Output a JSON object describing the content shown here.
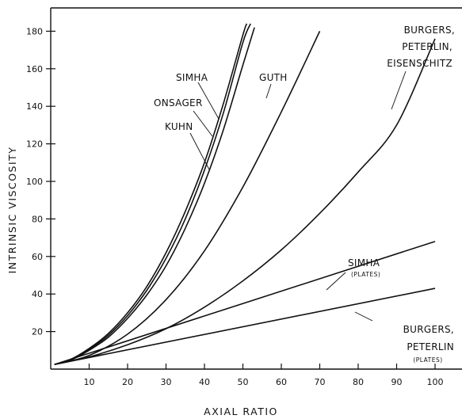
{
  "chart_data": {
    "type": "line",
    "title": "",
    "xlabel": "AXIAL RATIO",
    "ylabel": "INTRINSIC VISCOSITY",
    "xlim": [
      0,
      110
    ],
    "ylim": [
      0,
      190
    ],
    "x_ticks": [
      10,
      20,
      30,
      40,
      50,
      60,
      70,
      80,
      90,
      100
    ],
    "y_ticks": [
      20,
      40,
      60,
      80,
      100,
      120,
      140,
      160,
      180
    ],
    "grid": false,
    "series": [
      {
        "name": "SIMHA",
        "x": [
          1,
          5,
          10,
          15,
          20,
          25,
          30,
          35,
          40,
          45,
          50,
          51
        ],
        "y": [
          2.5,
          5,
          11,
          19,
          30,
          44,
          62,
          84,
          110,
          142,
          178,
          184
        ]
      },
      {
        "name": "ONSAGER",
        "x": [
          1,
          5,
          10,
          15,
          20,
          25,
          30,
          35,
          40,
          45,
          50,
          52
        ],
        "y": [
          2.5,
          4.8,
          10.5,
          18,
          28.5,
          42,
          59,
          80,
          106,
          137,
          174,
          184
        ]
      },
      {
        "name": "KUHN",
        "x": [
          1,
          5,
          10,
          15,
          20,
          25,
          30,
          35,
          40,
          45,
          50,
          53
        ],
        "y": [
          2.5,
          4.6,
          10,
          17,
          27,
          39.5,
          55,
          75,
          99,
          128,
          162,
          182
        ]
      },
      {
        "name": "GUTH",
        "x": [
          1,
          10,
          20,
          30,
          40,
          50,
          60,
          70
        ],
        "y": [
          2.5,
          7.3,
          18.6,
          37,
          63,
          97,
          137,
          180
        ]
      },
      {
        "name": "BURGERS, PETERLIN, EISENSCHITZ",
        "x": [
          1,
          10,
          20,
          30,
          40,
          50,
          60,
          70,
          80,
          90,
          100
        ],
        "y": [
          2.5,
          6.5,
          13,
          21.5,
          33,
          47,
          63.5,
          83,
          105,
          130,
          176
        ]
      },
      {
        "name": "SIMHA (PLATES)",
        "x": [
          1,
          100
        ],
        "y": [
          2.5,
          68
        ]
      },
      {
        "name": "BURGERS, PETERLIN (PLATES)",
        "x": [
          1,
          100
        ],
        "y": [
          2.5,
          43
        ]
      }
    ],
    "labels": {
      "simha": "SIMHA",
      "onsager": "ONSAGER",
      "kuhn": "KUHN",
      "guth": "GUTH",
      "burgers_1": "BURGERS,",
      "peterlin_1": "PETERLIN,",
      "eisenschitz": "EISENSCHITZ",
      "simha_plates": "SIMHA",
      "simha_plates_sub": "(PLATES)",
      "burgers_2": "BURGERS,",
      "peterlin_2": "PETERLIN",
      "burgers_plates_sub": "(PLATES)"
    }
  }
}
